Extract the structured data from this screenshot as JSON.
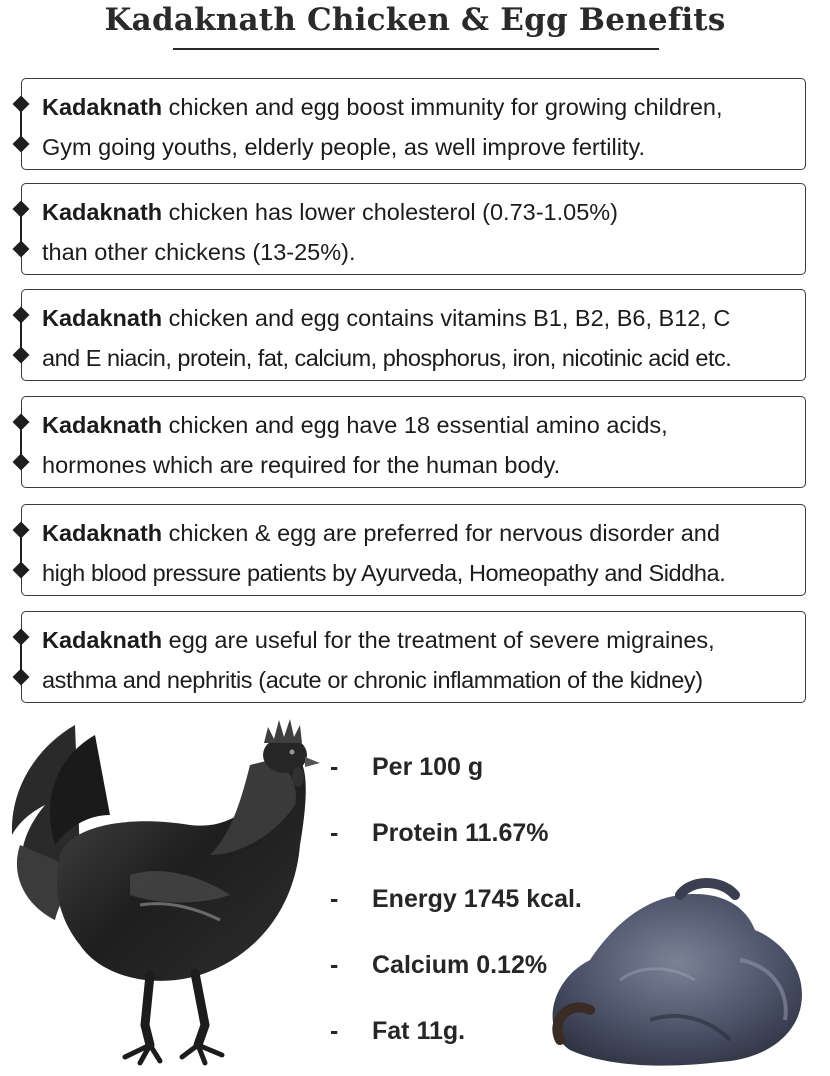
{
  "title": "Kadaknath Chicken & Egg Benefits",
  "benefits": [
    {
      "lead": "Kadaknath",
      "line1": " chicken and egg boost immunity for growing children,",
      "line2": "Gym going youths, elderly people, as well improve fertility."
    },
    {
      "lead": "Kadaknath",
      "line1": " chicken has lower cholesterol (0.73-1.05%)",
      "line2": "than other chickens (13-25%)."
    },
    {
      "lead": "Kadaknath",
      "line1": " chicken and egg  contains vitamins B1, B2, B6, B12, C",
      "line2": "and E niacin, protein, fat, calcium, phosphorus, iron, nicotinic acid etc."
    },
    {
      "lead": "Kadaknath",
      "line1": " chicken and egg have 18 essential amino acids,",
      "line2": "hormones which are required for the human body."
    },
    {
      "lead": "Kadaknath",
      "line1": " chicken & egg are preferred for nervous disorder and",
      "line2": "high blood pressure patients by Ayurveda, Homeopathy and Siddha."
    },
    {
      "lead": "Kadaknath",
      "line1": "  egg are useful for the treatment of severe migraines,",
      "line2": "asthma and nephritis (acute or chronic inflammation of the kidney)"
    }
  ],
  "nutrition": [
    {
      "dash": "-",
      "text": "Per 100 g"
    },
    {
      "dash": "-",
      "text": "Protein 11.67%"
    },
    {
      "dash": "-",
      "text": "Energy 1745 kcal."
    },
    {
      "dash": "-",
      "text": "Calcium 0.12%"
    },
    {
      "dash": "-",
      "text": "Fat 11g."
    }
  ],
  "images": {
    "rooster": "black-rooster-photo",
    "meat": "dressed-black-chicken-photo"
  }
}
